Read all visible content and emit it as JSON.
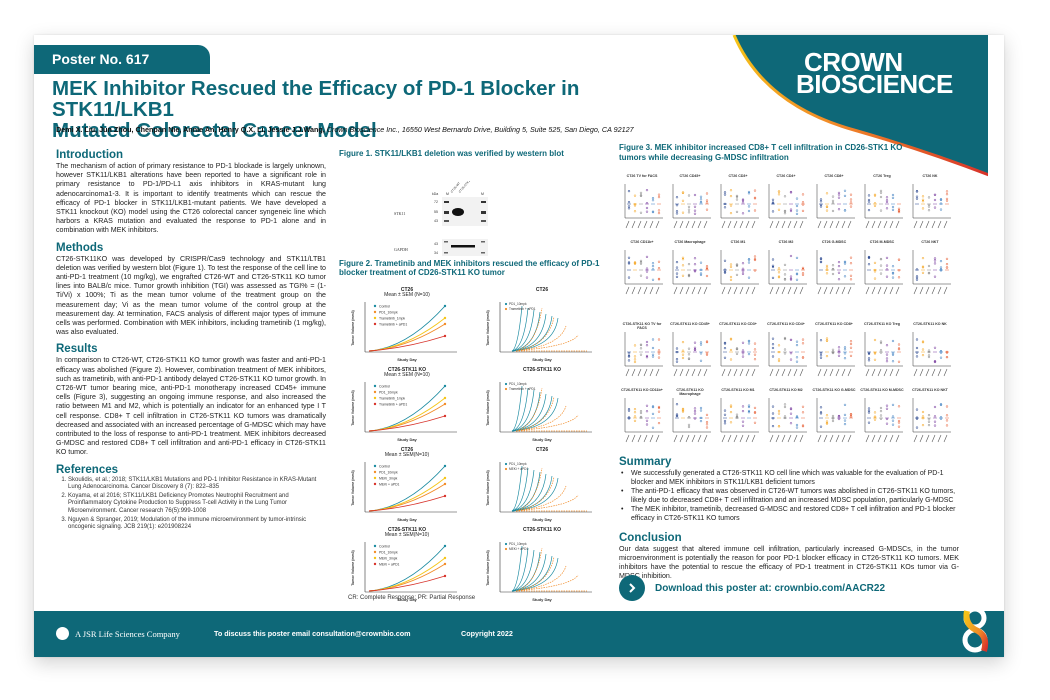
{
  "poster": {
    "number": "Poster No. 617",
    "title_line1": "MEK Inhibitor Rescued the Efficacy of PD-1 Blocker in STK11/LKB1",
    "title_line2": "Mutated Colorectal Cancer Model",
    "authors": "Demi X. Liu, Jun Zhou, Chenpan Nie, Annie An, Henry Q.X. Li, Jessie J.J.Wang,",
    "affiliation": "Crown Bioscience Inc., 16550 West Bernardo Drive, Building 5, Suite 525, San Diego, CA 92127",
    "brand_line1": "CROWN",
    "brand_line2": "BIOSCIENCE"
  },
  "colors": {
    "primary": "#0e6878",
    "accent_orange": "#f28c28",
    "accent_red": "#d7322a",
    "accent_yellow": "#f5c518"
  },
  "sections": {
    "introduction": {
      "heading": "Introduction",
      "text": "The mechanism of action of primary resistance to PD-1 blockade is largely unknown, however STK11/LKB1 alterations have been reported to have a significant role in primary resistance to PD-1/PD-L1 axis inhibitors in KRAS-mutant lung adenocarcinoma1-3. It is important to identify treatments which can rescue the efficacy of PD-1 blocker in STK11/LKB1-mutant patients. We have developed a STK11 knockout (KO) model using the CT26 colorectal cancer syngeneic line which harbors a KRAS mutation and evaluated the response to PD-1 alone and in combination with MEK inhibitors."
    },
    "methods": {
      "heading": "Methods",
      "text": "CT26-STK11KO was developed by CRISPR/Cas9 technology and STK11/LTB1 deletion was verified by western blot (Figure 1). To test the response of the cell line to anti-PD-1 treatment (10 mg/kg), we engrafted CT26-WT and CT26-STK11 KO tumor lines into BALB/c mice. Tumor growth inhibition (TGI) was assessed as TGI% = (1-Ti/Vi) x 100%; Ti as the mean tumor volume of the treatment group on the measurement day; Vi as the mean tumor volume of the control group at the measurement day. At termination, FACS analysis of different major types of immune cells was performed. Combination with MEK inhibitors, including trametinib (1 mg/kg), was also evaluated."
    },
    "results": {
      "heading": "Results",
      "text": "In comparison to CT26-WT, CT26-STK11 KO tumor growth was faster and anti-PD-1 efficacy was abolished (Figure 2). However, combination treatment of MEK inhibitors, such as trametinib, with anti-PD-1 antibody delayed CT26-STK11 KO tumor growth. In CT26-WT tumor bearing mice, anti-PD-1 monotherapy increased CD45+ immune cells (Figure 3), suggesting an ongoing immune response, and also increased the ratio between M1 and M2, which is potentially an indicator for an enhanced type I T cell response. CD8+ T cell infiltration in CT26-STK11 KO tumors was dramatically decreased and associated with an increased percentage of G-MDSC which may have contributed to the loss of response to anti-PD-1 treatment. MEK inhibitors decreased G-MDSC and restored CD8+ T cell infiltration and anti-PD-1 efficacy in CT26-STK11 KO tumor."
    },
    "references": {
      "heading": "References",
      "items": [
        "Skoulidis, et al.; 2018; STK11/LKB1 Mutations and PD-1 Inhibitor Resistance in KRAS-Mutant Lung Adenocarcinoma. Cancer Discovery 8 (7): 822–835",
        "Koyama, et al 2016; STK11/LKB1 Deficiency Promotes Neutrophil Recruitment and Proinflammatory Cytokine Production to Suppress T-cell Activity in the Lung Tumor Microenvironment. Cancer research 76(5):999-1008",
        "Nguyen & Spranger, 2019; Modulation of the immune microenvironment by tumor-intrinsic oncogenic signaling. JCB 219(1): e201908224"
      ]
    },
    "summary": {
      "heading": "Summary",
      "items": [
        "We successfully generated a CT26-STK11 KO cell line which was valuable for the evaluation of PD-1 blocker and MEK inhibitors in STK11/LKB1 deficient tumors",
        "The anti-PD-1 efficacy that was observed in CT26-WT tumors was abolished in CT26-STK11 KO tumors, likely due to decreased CD8+ T cell infiltration and an increased MDSC population, particularly G-MDSC",
        "The MEK inhibitor, trametinib, decreased G-MDSC and restored CD8+ T cell infiltration and PD-1 blocker efficacy in CT26-STK11 KO tumors"
      ]
    },
    "conclusion": {
      "heading": "Conclusion",
      "text": "Our data suggest that altered immune cell infiltration, particularly increased G-MDSCs, in the tumor microenvironment is potentially the reason for poor PD-1 blocker efficacy in CT26-STK11 KO tumors. MEK inhibitors have the potential to rescue the efficacy of PD-1 treatment in CT26-STK11 KOs tumor via G-MDSC inhibition."
    }
  },
  "figures": {
    "fig1": {
      "caption": "Figure 1. STK11/LKB1 deletion was verified by western blot",
      "lanes": [
        "M",
        "CT26-WT",
        "CT26-STK11KO",
        "M"
      ],
      "kda_markers": [
        "72",
        "55",
        "43",
        "43",
        "34"
      ],
      "proteins": [
        "STK11",
        "GAPDH"
      ],
      "kda_label": "kDa"
    },
    "fig2": {
      "caption": "Figure 2. Trametinib and MEK inhibitors rescued the efficacy of PD-1 blocker treatment of CD26-STK11 KO tumor",
      "footnote": "CR: Complete Response; PR: Partial Response",
      "xlabel": "Study Day",
      "ylabel": "Tumor Volume (mm3)",
      "panels": [
        {
          "title": "CT26",
          "subtitle": "Mean ± SEM (N=10)",
          "legend": [
            "Control",
            "PD1_10mpk",
            "Trametinib_1mpk",
            "Trametinib + aPD1"
          ]
        },
        {
          "title": "CT26",
          "subtitle": "",
          "legend": [
            "PD1_10mpk",
            "Trametinib + aPD1"
          ]
        },
        {
          "title": "CT26-STK11 KO",
          "subtitle": "Mean ± SEM (N=10)",
          "legend": [
            "Control",
            "PD1_10mpk",
            "Trametinib_1mpk",
            "Trametinib + aPD1"
          ]
        },
        {
          "title": "CT26-STK11 KO",
          "subtitle": "",
          "legend": [
            "PD1_10mpk",
            "Trametinib + aPD1"
          ]
        },
        {
          "title": "CT26",
          "subtitle": "Mean ± SEM(N=10)",
          "legend": [
            "Control",
            "PD1_10mpk",
            "MEKi_3mpk",
            "MEKi + aPD1"
          ]
        },
        {
          "title": "CT26",
          "subtitle": "",
          "legend": [
            "PD1_10mpk",
            "MEKi + aPD1"
          ]
        },
        {
          "title": "CT26-STK11 KO",
          "subtitle": "Mean ± SEM(N=10)",
          "legend": [
            "Control",
            "PD1_10mpk",
            "MEKi_3mpk",
            "MEKi + aPD1"
          ]
        },
        {
          "title": "CT26-STK11 KO",
          "subtitle": "",
          "legend": [
            "PD1_10mpk",
            "MEKi + aPD1"
          ]
        }
      ]
    },
    "fig3": {
      "caption": "Figure 3. MEK inhibitor increased CD8+ T cell infiltration in CD26-STK1 KO tumors while decreasing G-MDSC infiltration",
      "panels_row1": [
        "CT26 TV for FACS",
        "CT26 CD45+",
        "CT26 CD3+",
        "CT26 CD4+",
        "CT26 CD8+",
        "CT26 Treg",
        "CT26 NK"
      ],
      "panels_row2": [
        "CT26 CD11b+",
        "CT26 Macrophage",
        "CT26 M1",
        "CT26 M2",
        "CT26 G-MDSC",
        "CT26 M-MDSC",
        "CT26 NKT"
      ],
      "panels_row3": [
        "CT26-STK11 KO TV for FACS",
        "CT26-STK11 KO CD45+",
        "CT26-STK11 KO CD3+",
        "CT26-STK11 KO CD4+",
        "CT26-STK11 KO CD8+",
        "CT26-STK11 KO Treg",
        "CT26-STK11 KO NK"
      ],
      "panels_row4": [
        "CT26-STK11 KO CD11b+",
        "CT26-STK11 KO Macrophage",
        "CT26-STK11 KO M1",
        "CT26-STK11 KO M2",
        "CT26-STK11 KO G-MDSC",
        "CT26-STK11 KO M-MDSC",
        "CT26-STK11 KO NKT"
      ]
    }
  },
  "download": {
    "label": "Download this poster at: crownbio.com/AACR22",
    "icon": "chevron-right-icon"
  },
  "footer": {
    "company": "A JSR Life Sciences Company",
    "email_text": "To discuss this poster email consultation@crownbio.com",
    "copyright": "Copyright 2022"
  }
}
